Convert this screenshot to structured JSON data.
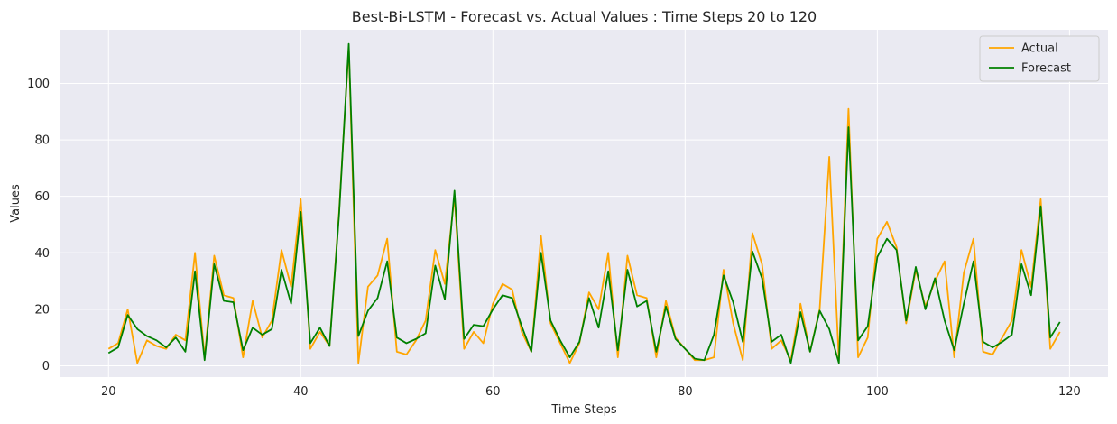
{
  "chart_data": {
    "type": "line",
    "title": "Best-Bi-LSTM - Forecast vs. Actual Values : Time Steps 20 to 120",
    "xlabel": "Time Steps",
    "ylabel": "Values",
    "xlim": [
      15,
      124
    ],
    "ylim": [
      -4,
      119
    ],
    "xticks": [
      20,
      40,
      60,
      80,
      100,
      120
    ],
    "yticks": [
      0,
      20,
      40,
      60,
      80,
      100
    ],
    "grid": true,
    "legend_position": "top-right",
    "x": [
      20,
      21,
      22,
      23,
      24,
      25,
      26,
      27,
      28,
      29,
      30,
      31,
      32,
      33,
      34,
      35,
      36,
      37,
      38,
      39,
      40,
      41,
      42,
      43,
      44,
      45,
      46,
      47,
      48,
      49,
      50,
      51,
      52,
      53,
      54,
      55,
      56,
      57,
      58,
      59,
      60,
      61,
      62,
      63,
      64,
      65,
      66,
      67,
      68,
      69,
      70,
      71,
      72,
      73,
      74,
      75,
      76,
      77,
      78,
      79,
      80,
      81,
      82,
      83,
      84,
      85,
      86,
      87,
      88,
      89,
      90,
      91,
      92,
      93,
      94,
      95,
      96,
      97,
      98,
      99,
      100,
      101,
      102,
      103,
      104,
      105,
      106,
      107,
      108,
      109,
      110,
      111,
      112,
      113,
      114,
      115,
      116,
      117,
      118,
      119
    ],
    "series": [
      {
        "name": "Actual",
        "color": "#ffa500",
        "values": [
          6,
          8,
          20,
          1,
          9,
          7,
          6,
          11,
          9,
          40,
          3,
          39,
          25,
          24,
          3,
          23,
          10,
          16,
          41,
          28,
          59,
          6,
          12,
          7,
          55,
          113,
          1,
          28,
          32,
          45,
          5,
          4,
          9,
          16,
          41,
          29,
          60,
          6,
          12,
          8,
          22,
          29,
          27,
          12,
          5,
          46,
          15,
          8,
          1,
          8,
          26,
          20,
          40,
          3,
          39,
          25,
          24,
          3,
          23,
          10,
          6,
          2,
          2,
          3,
          34,
          15,
          2,
          47,
          36,
          6,
          9,
          2,
          22,
          5,
          20,
          74,
          2,
          91,
          3,
          10,
          45,
          51,
          42,
          15,
          34,
          21,
          30,
          37,
          3,
          33,
          45,
          5,
          4,
          10,
          16,
          41,
          28,
          59,
          6,
          12
        ]
      },
      {
        "name": "Forecast",
        "color": "#008000",
        "values": [
          4.5,
          6.5,
          18,
          13,
          10.5,
          9,
          6.5,
          10,
          5,
          33.5,
          2,
          36,
          23,
          22.5,
          5.5,
          13.5,
          11,
          13,
          34,
          22,
          54.5,
          8,
          13.5,
          7,
          54,
          114,
          10.5,
          19.5,
          24,
          37,
          10,
          8,
          9.5,
          11.5,
          35.5,
          23.5,
          62,
          9.5,
          14.5,
          14,
          20,
          25,
          24,
          14,
          5,
          40,
          16,
          9,
          3,
          8.5,
          24,
          13.5,
          33.5,
          5.5,
          34,
          21,
          23,
          5,
          21,
          9.5,
          6,
          2.5,
          2,
          11,
          32,
          22.5,
          8.5,
          40.5,
          31,
          8.5,
          11,
          1,
          19,
          5,
          19.5,
          13,
          1,
          84.5,
          9,
          14,
          38.5,
          45,
          41,
          16,
          35,
          20,
          31,
          16,
          5.5,
          22,
          37,
          8.5,
          6.5,
          8.5,
          11,
          36,
          25,
          56.5,
          10,
          15.5
        ]
      }
    ]
  }
}
